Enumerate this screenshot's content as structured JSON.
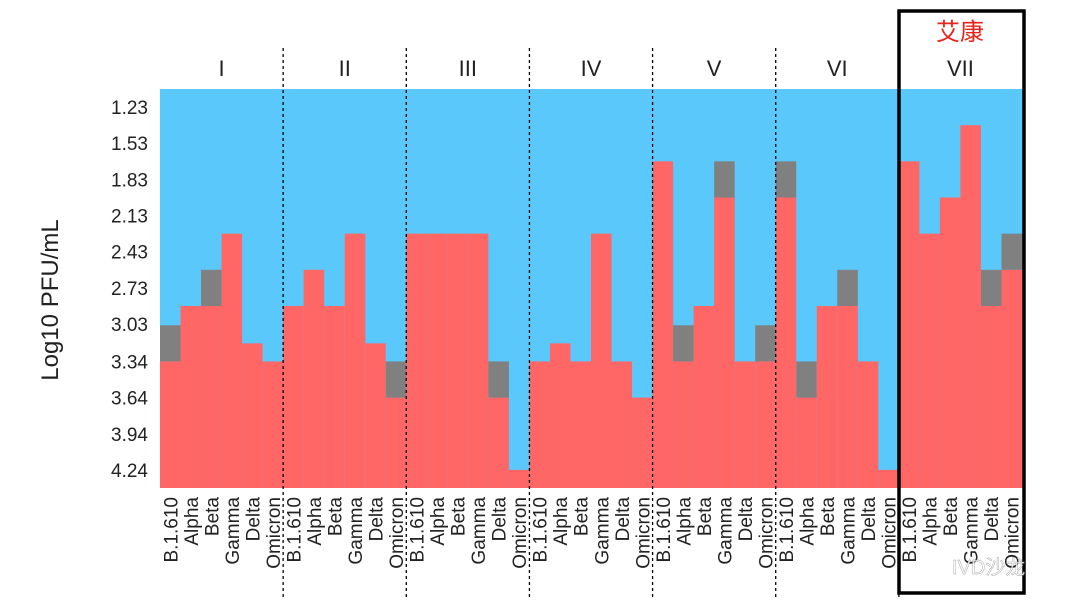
{
  "chart_data": {
    "type": "heatmap",
    "ylabel": "Log10 PFU/mL",
    "y_ticks": [
      "1.23",
      "1.53",
      "1.83",
      "2.13",
      "2.43",
      "2.73",
      "3.03",
      "3.34",
      "3.64",
      "3.94",
      "4.24"
    ],
    "variants": [
      "B.1.610",
      "Alpha",
      "Beta",
      "Gamma",
      "Delta",
      "Omicron"
    ],
    "groups": [
      {
        "label": "I",
        "red_top": [
          3.34,
          2.88,
          2.88,
          2.28,
          3.19,
          3.34
        ],
        "gray_top": [
          3.04,
          null,
          2.58,
          null,
          null,
          null
        ]
      },
      {
        "label": "II",
        "red_top": [
          2.88,
          2.58,
          2.88,
          2.28,
          3.19,
          3.64
        ],
        "gray_top": [
          null,
          null,
          null,
          null,
          null,
          3.34
        ]
      },
      {
        "label": "III",
        "red_top": [
          2.28,
          2.28,
          2.28,
          2.28,
          3.64,
          4.24
        ],
        "gray_top": [
          null,
          null,
          null,
          null,
          3.34,
          null
        ]
      },
      {
        "label": "IV",
        "red_top": [
          3.34,
          3.19,
          3.34,
          2.28,
          3.34,
          3.64
        ],
        "gray_top": [
          null,
          null,
          null,
          null,
          null,
          null
        ]
      },
      {
        "label": "V",
        "red_top": [
          1.68,
          3.34,
          2.88,
          1.98,
          3.34,
          3.34
        ],
        "gray_top": [
          null,
          3.04,
          null,
          1.68,
          null,
          3.04
        ]
      },
      {
        "label": "VI",
        "red_top": [
          1.98,
          3.64,
          2.88,
          2.88,
          3.34,
          4.24
        ],
        "gray_top": [
          1.68,
          3.34,
          null,
          2.58,
          null,
          null
        ]
      },
      {
        "label": "VII",
        "red_top": [
          1.68,
          2.28,
          1.98,
          1.38,
          2.88,
          2.58
        ],
        "gray_top": [
          null,
          null,
          null,
          null,
          2.58,
          2.28
        ]
      }
    ],
    "colors": {
      "background": "#5ac8fa",
      "value": "#ff6666",
      "marker": "#808080"
    },
    "highlight": {
      "group": "VII",
      "annotation": "艾康",
      "annotation_color": "#e8231b"
    },
    "watermark": "IVD沙龙"
  }
}
